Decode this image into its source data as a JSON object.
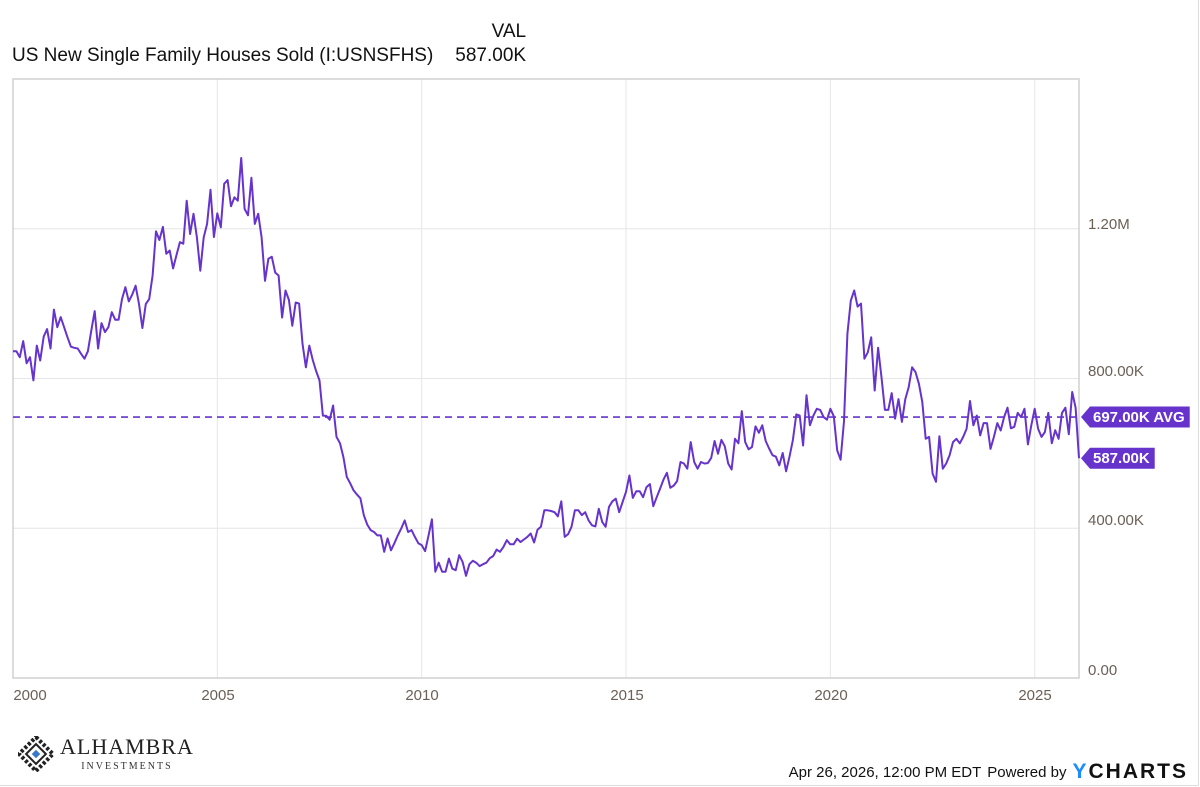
{
  "header": {
    "column_label": "VAL",
    "series_title": "US New Single Family Houses Sold (I:USNSFHS)",
    "latest_value": "587.00K"
  },
  "colors": {
    "line": "#6633cc",
    "grid": "#e6e6e6",
    "axis_text": "#6b6056",
    "brand_y": "#1a8cff"
  },
  "chart_data": {
    "type": "line",
    "title": "US New Single Family Houses Sold (I:USNSFHS)",
    "frequency": "monthly",
    "start": "2000-01",
    "x_ticks": [
      "2000",
      "2005",
      "2010",
      "2015",
      "2020",
      "2025"
    ],
    "y_ticks": [
      {
        "value": 0,
        "label": "0.00"
      },
      {
        "value": 400000,
        "label": "400.00K"
      },
      {
        "value": 800000,
        "label": "800.00K"
      },
      {
        "value": 1200000,
        "label": "1.20M"
      }
    ],
    "xlim": [
      "2000-01",
      "2026-02"
    ],
    "ylim": [
      0,
      1600000
    ],
    "grid": true,
    "unit": "thousands",
    "values": [
      873,
      873,
      857,
      900,
      841,
      857,
      795,
      888,
      848,
      912,
      932,
      880,
      984,
      937,
      964,
      937,
      910,
      885,
      882,
      880,
      866,
      853,
      873,
      928,
      980,
      880,
      948,
      924,
      937,
      977,
      957,
      957,
      1012,
      1044,
      1006,
      1024,
      1048,
      999,
      935,
      999,
      1012,
      1075,
      1193,
      1170,
      1205,
      1133,
      1142,
      1094,
      1130,
      1164,
      1160,
      1275,
      1186,
      1240,
      1177,
      1088,
      1177,
      1213,
      1304,
      1178,
      1241,
      1204,
      1320,
      1330,
      1260,
      1284,
      1275,
      1389,
      1253,
      1236,
      1336,
      1213,
      1240,
      1177,
      1061,
      1120,
      1125,
      1083,
      1075,
      963,
      1035,
      1010,
      941,
      1003,
      1000,
      893,
      830,
      888,
      850,
      820,
      795,
      701,
      700,
      690,
      728,
      644,
      627,
      590,
      537,
      520,
      501,
      490,
      480,
      435,
      410,
      395,
      390,
      381,
      381,
      337,
      373,
      341,
      360,
      381,
      400,
      421,
      390,
      395,
      377,
      360,
      355,
      339,
      380,
      424,
      284,
      308,
      284,
      284,
      319,
      292,
      288,
      328,
      310,
      273,
      304,
      313,
      308,
      299,
      304,
      308,
      320,
      326,
      343,
      337,
      350,
      368,
      357,
      357,
      372,
      363,
      370,
      377,
      386,
      362,
      396,
      404,
      448,
      448,
      446,
      443,
      432,
      472,
      377,
      384,
      404,
      448,
      448,
      435,
      443,
      421,
      408,
      405,
      452,
      417,
      404,
      457,
      472,
      479,
      443,
      470,
      497,
      541,
      481,
      499,
      499,
      483,
      510,
      518,
      459,
      483,
      506,
      530,
      548,
      508,
      514,
      526,
      577,
      573,
      559,
      630,
      577,
      559,
      577,
      573,
      574,
      588,
      633,
      599,
      636,
      619,
      573,
      557,
      639,
      627,
      713,
      630,
      611,
      617,
      672,
      655,
      675,
      633,
      613,
      595,
      591,
      568,
      601,
      552,
      591,
      636,
      704,
      701,
      621,
      755,
      675,
      701,
      719,
      716,
      697,
      690,
      719,
      699,
      608,
      583,
      686,
      919,
      1008,
      1035,
      992,
      1000,
      853,
      870,
      910,
      768,
      882,
      803,
      716,
      716,
      761,
      693,
      745,
      684,
      745,
      777,
      830,
      817,
      786,
      737,
      639,
      644,
      546,
      524,
      646,
      559,
      573,
      595,
      630,
      639,
      627,
      644,
      666,
      740,
      675,
      701,
      648,
      681,
      681,
      612,
      644,
      681,
      661,
      697,
      722,
      667,
      671,
      708,
      697,
      719,
      624,
      675,
      719,
      666,
      644,
      657,
      708,
      627,
      662,
      639,
      708,
      722,
      651,
      764,
      722,
      587
    ],
    "average": {
      "value": 697,
      "label": "697.00K AVG"
    },
    "last": {
      "value": 587,
      "label": "587.00K"
    }
  },
  "footer": {
    "timestamp": "Apr 26, 2026, 12:00 PM EDT",
    "powered_by": "Powered by",
    "brand_y": "Y",
    "brand_rest": "CHARTS",
    "logo_name": "ALHAMBRA",
    "logo_sub": "INVESTMENTS"
  }
}
